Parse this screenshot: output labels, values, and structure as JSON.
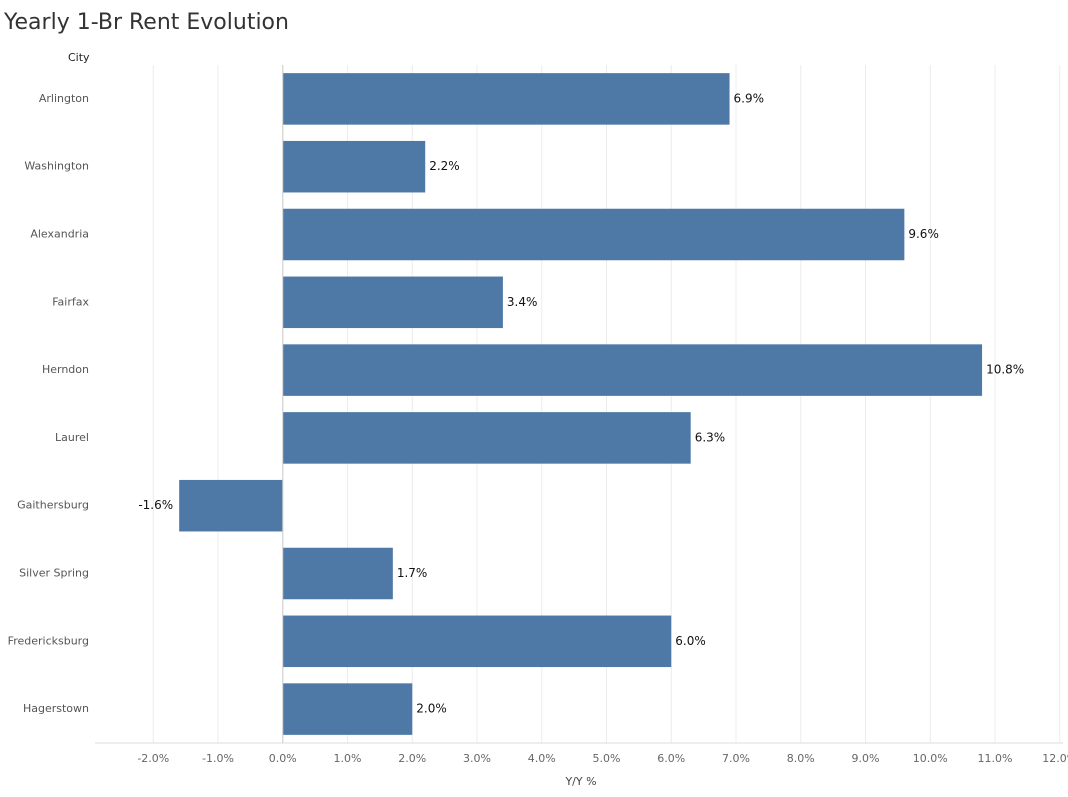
{
  "chart_data": {
    "type": "hbar",
    "title": "Yearly 1-Br Rent Evolution",
    "y_axis_title": "City",
    "x_axis_title": "Y/Y %",
    "categories": [
      "Arlington",
      "Washington",
      "Alexandria",
      "Fairfax",
      "Herndon",
      "Laurel",
      "Gaithersburg",
      "Silver Spring",
      "Fredericksburg",
      "Hagerstown"
    ],
    "values": [
      6.9,
      2.2,
      9.6,
      3.4,
      10.8,
      6.3,
      -1.6,
      1.7,
      6.0,
      2.0
    ],
    "value_labels": [
      "6.9%",
      "2.2%",
      "9.6%",
      "3.4%",
      "10.8%",
      "6.3%",
      "-1.6%",
      "1.7%",
      "6.0%",
      "2.0%"
    ],
    "color": "#4e79a7",
    "xlim": [
      -2.9,
      12.05
    ],
    "xticks": [
      {
        "value": -2,
        "label": "-2.0%"
      },
      {
        "value": -1,
        "label": "-1.0%"
      },
      {
        "value": 0,
        "label": "0.0%"
      },
      {
        "value": 1,
        "label": "1.0%"
      },
      {
        "value": 2,
        "label": "2.0%"
      },
      {
        "value": 3,
        "label": "3.0%"
      },
      {
        "value": 4,
        "label": "4.0%"
      },
      {
        "value": 5,
        "label": "5.0%"
      },
      {
        "value": 6,
        "label": "6.0%"
      },
      {
        "value": 7,
        "label": "7.0%"
      },
      {
        "value": 8,
        "label": "8.0%"
      },
      {
        "value": 9,
        "label": "9.0%"
      },
      {
        "value": 10,
        "label": "10.0%"
      },
      {
        "value": 11,
        "label": "11.0%"
      },
      {
        "value": 12,
        "label": "12.0%"
      }
    ],
    "grid": true
  }
}
